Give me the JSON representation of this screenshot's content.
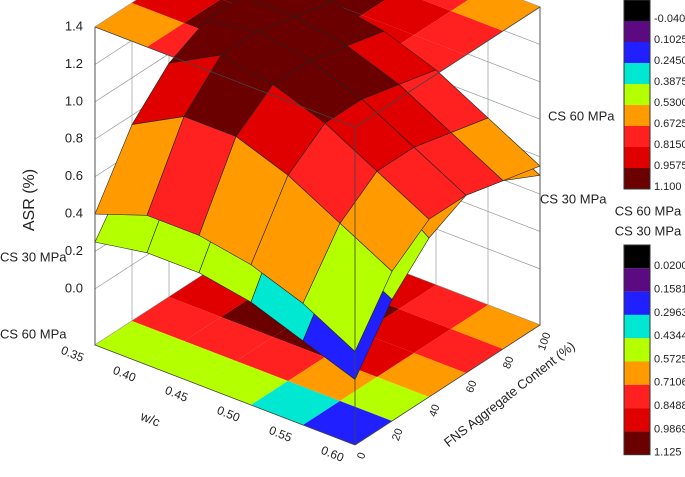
{
  "chart_data": {
    "type": "surface3d",
    "zlabel": "ASR (%)",
    "xlabel": "w/c",
    "ylabel": "FNS Aggregate Content (%)",
    "x": [
      0.35,
      0.4,
      0.45,
      0.5,
      0.55,
      0.6
    ],
    "y": [
      0,
      20,
      40,
      60,
      80,
      100
    ],
    "xlim": [
      0.35,
      0.6
    ],
    "ylim": [
      0,
      100
    ],
    "zlim": [
      -0.3,
      1.4
    ],
    "xticks": [
      {
        "value": 0.35,
        "label": "0.35"
      },
      {
        "value": 0.4,
        "label": "0.40"
      },
      {
        "value": 0.45,
        "label": "0.45"
      },
      {
        "value": 0.5,
        "label": "0.50"
      },
      {
        "value": 0.55,
        "label": "0.55"
      },
      {
        "value": 0.6,
        "label": "0.60"
      }
    ],
    "yticks": [
      0,
      20,
      40,
      60,
      80,
      100
    ],
    "zticks": [
      {
        "value": 0,
        "label": "0.0"
      },
      0.2,
      0.4,
      0.6,
      0.8,
      {
        "value": 1,
        "label": "1.0"
      },
      1.2,
      1.4
    ],
    "grid": true,
    "series": [
      {
        "name": "CS 30 MPa",
        "colorbar": 1,
        "projection": "floor",
        "values": [
          [
            0.25,
            0.55,
            0.8,
            0.9,
            0.85,
            0.7
          ],
          [
            0.3,
            0.7,
            0.95,
            1.05,
            1.0,
            0.8
          ],
          [
            0.3,
            0.7,
            1.0,
            1.1,
            1.0,
            0.8
          ],
          [
            0.25,
            0.65,
            0.9,
            1.0,
            0.95,
            0.75
          ],
          [
            0.15,
            0.5,
            0.75,
            0.85,
            0.8,
            0.65
          ],
          [
            0.05,
            0.35,
            0.55,
            0.65,
            0.6,
            0.5
          ]
        ]
      },
      {
        "name": "CS 60 MPa",
        "colorbar": 0,
        "projection": "top",
        "values": [
          [
            0.4,
            0.75,
            0.95,
            1.05,
            1.05,
            1.0
          ],
          [
            0.5,
            0.9,
            1.1,
            1.1,
            1.05,
            1.0
          ],
          [
            0.5,
            0.9,
            1.05,
            1.05,
            1.0,
            0.95
          ],
          [
            0.45,
            0.8,
            0.95,
            0.95,
            0.9,
            0.85
          ],
          [
            0.35,
            0.65,
            0.8,
            0.8,
            0.75,
            0.7
          ],
          [
            0.2,
            0.5,
            0.65,
            0.65,
            0.6,
            0.55
          ]
        ]
      }
    ],
    "colorbars": [
      {
        "title": "CS 60 MPa",
        "ticks": [
          {
            "value": -0.04,
            "label": "-0.04000"
          },
          0.1025,
          {
            "value": 0.245,
            "label": "0.2450"
          },
          0.3875,
          {
            "value": 0.53,
            "label": "0.5300"
          },
          0.6725,
          {
            "value": 0.815,
            "label": "0.8150"
          },
          0.9575,
          {
            "value": 1.1,
            "label": "1.100"
          }
        ],
        "colors": [
          "#000000",
          "#5c0a82",
          "#1f1fff",
          "#00e8d2",
          "#b4ff00",
          "#ff9a00",
          "#ff2020",
          "#e00000",
          "#6a0000"
        ]
      },
      {
        "title": "CS 30 MPa",
        "ticks": [
          {
            "value": 0.02,
            "label": "0.02000"
          },
          0.1581,
          0.2963,
          0.4344,
          0.5725,
          0.7106,
          0.8488,
          0.9869,
          1.125
        ],
        "colors": [
          "#000000",
          "#5c0a82",
          "#1f1fff",
          "#00e8d2",
          "#b4ff00",
          "#ff9a00",
          "#ff2020",
          "#e00000",
          "#6a0000"
        ]
      }
    ]
  }
}
